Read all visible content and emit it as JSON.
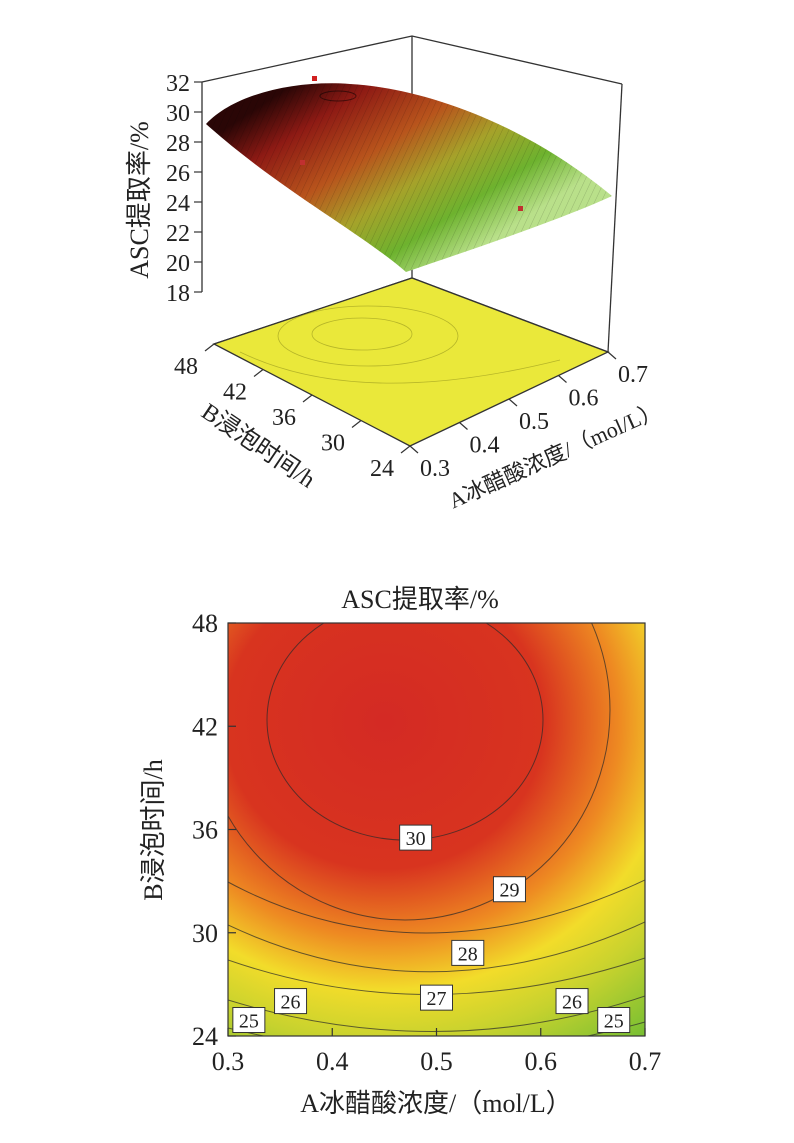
{
  "chart_data": [
    {
      "type": "surface3d",
      "zlabel": "ASC提取率/%",
      "xlabel": "A冰醋酸浓度/（mol/L）",
      "ylabel": "B浸泡时间/h",
      "x_ticks": [
        "0.3",
        "0.4",
        "0.5",
        "0.6",
        "0.7"
      ],
      "y_ticks": [
        "24",
        "30",
        "36",
        "42",
        "48"
      ],
      "z_ticks": [
        "18",
        "20",
        "22",
        "24",
        "26",
        "28",
        "30",
        "32"
      ],
      "xlim": [
        0.3,
        0.7
      ],
      "ylim": [
        24,
        48
      ],
      "zlim": [
        18,
        32
      ],
      "surface_corners": [
        {
          "x": 0.3,
          "y": 48,
          "z": 29.5
        },
        {
          "x": 0.7,
          "y": 48,
          "z": 25.0
        },
        {
          "x": 0.3,
          "y": 24,
          "z": 25.0
        },
        {
          "x": 0.7,
          "y": 24,
          "z": 19.0
        }
      ],
      "peak": {
        "x": 0.48,
        "y": 43,
        "z": 31.3
      },
      "colors": {
        "high": "#c81e1e",
        "mid": "#e8d21e",
        "low": "#6cbf2a",
        "floor": "#eae83a"
      }
    },
    {
      "type": "contour",
      "title": "ASC提取率/%",
      "xlabel": "A冰醋酸浓度/（mol/L）",
      "ylabel": "B浸泡时间/h",
      "x_ticks": [
        "0.3",
        "0.4",
        "0.5",
        "0.6",
        "0.7"
      ],
      "y_ticks": [
        "24",
        "30",
        "36",
        "42",
        "48"
      ],
      "xlim": [
        0.3,
        0.7
      ],
      "ylim": [
        24,
        48
      ],
      "optimum": {
        "x": 0.48,
        "y": 43.3,
        "z": 31.3
      },
      "contour_levels": [
        "25",
        "26",
        "27",
        "28",
        "29",
        "30"
      ],
      "contour_labels": [
        {
          "text": "30",
          "x": 0.48,
          "y": 35.5
        },
        {
          "text": "29",
          "x": 0.57,
          "y": 32.5
        },
        {
          "text": "28",
          "x": 0.53,
          "y": 28.8
        },
        {
          "text": "27",
          "x": 0.5,
          "y": 26.2
        },
        {
          "text": "26",
          "x": 0.36,
          "y": 26.0
        },
        {
          "text": "26",
          "x": 0.63,
          "y": 26.0
        },
        {
          "text": "25",
          "x": 0.32,
          "y": 24.9
        },
        {
          "text": "25",
          "x": 0.67,
          "y": 24.9
        }
      ],
      "colors": {
        "high": "#d42a24",
        "mid": "#f2dc2a",
        "low": "#7cc032"
      }
    }
  ]
}
